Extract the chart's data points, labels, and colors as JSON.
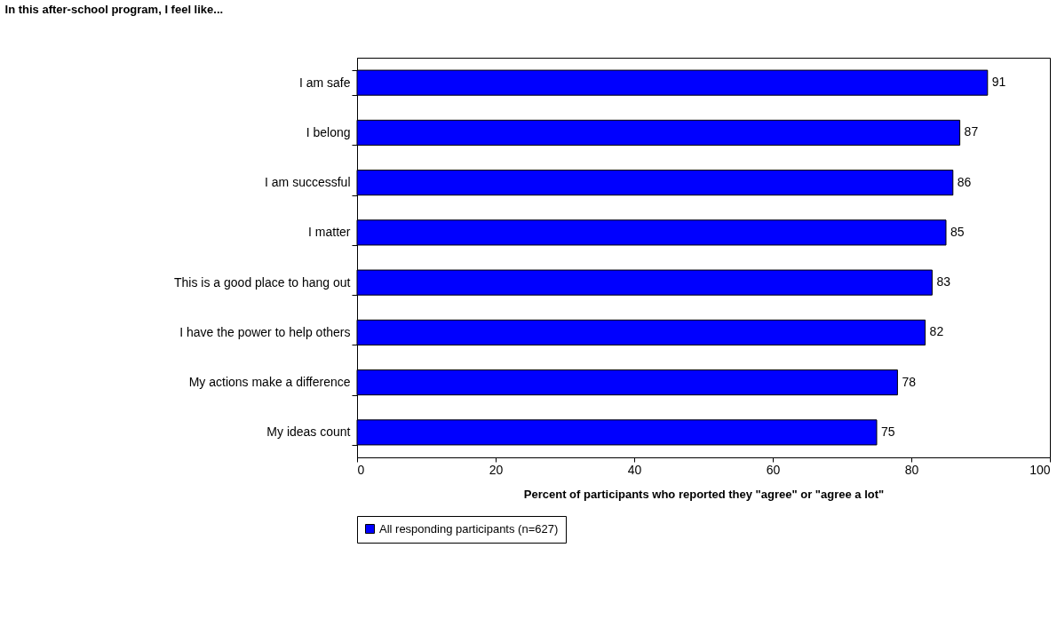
{
  "chart_data": {
    "type": "bar",
    "orientation": "horizontal",
    "title": "In this after-school program, I feel like...",
    "xlabel": "Percent of participants who reported they \"agree\" or \"agree a lot\"",
    "categories": [
      "I am safe",
      "I belong",
      "I am successful",
      "I matter",
      "This is a good place to hang out",
      "I have the power to help others",
      "My actions make a difference",
      "My ideas count"
    ],
    "series": [
      {
        "name": "All responding participants (n=627)",
        "color": "#0000ff",
        "values": [
          91,
          87,
          86,
          85,
          83,
          82,
          78,
          75
        ]
      }
    ],
    "xlim": [
      0,
      100
    ],
    "xticks": [
      0,
      20,
      40,
      60,
      80,
      100
    ],
    "data_labels": true,
    "grid": false,
    "legend": "bottom"
  }
}
